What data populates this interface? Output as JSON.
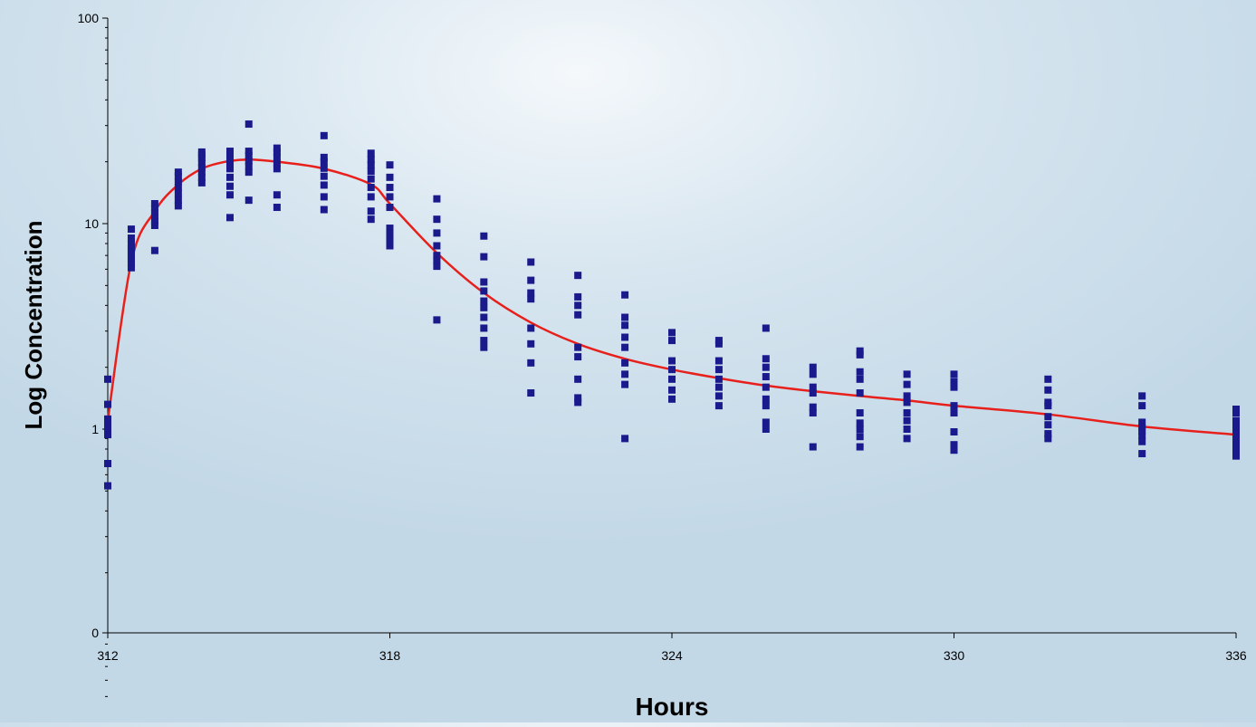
{
  "chart_data": {
    "type": "scatter",
    "xlabel": "Hours",
    "ylabel": "Log Concentration",
    "xlim": [
      312,
      336
    ],
    "ylim": [
      0.03,
      100
    ],
    "y_scale": "log",
    "x_ticks": [
      312,
      318,
      324,
      330,
      336
    ],
    "y_ticks": [
      {
        "value": 100,
        "label": "100"
      },
      {
        "value": 10,
        "label": "10"
      },
      {
        "value": 1,
        "label": "1"
      },
      {
        "value": 0.03,
        "label": "0"
      }
    ],
    "grid": false,
    "legend": "none",
    "colors": {
      "points": "#1a1a8c",
      "fit_line": "#e8201c"
    },
    "series": [
      {
        "kind": "points",
        "points": [
          [
            312,
            0.53
          ],
          [
            312,
            0.68
          ],
          [
            312,
            0.94
          ],
          [
            312,
            0.97
          ],
          [
            312,
            1.0
          ],
          [
            312,
            1.04
          ],
          [
            312,
            1.08
          ],
          [
            312,
            1.12
          ],
          [
            312,
            1.32
          ],
          [
            312,
            1.75
          ],
          [
            312.5,
            6.1
          ],
          [
            312.5,
            6.4
          ],
          [
            312.5,
            6.7
          ],
          [
            312.5,
            7.0
          ],
          [
            312.5,
            7.3
          ],
          [
            312.5,
            7.6
          ],
          [
            312.5,
            8.0
          ],
          [
            312.5,
            8.5
          ],
          [
            312.5,
            9.4
          ],
          [
            313,
            7.4
          ],
          [
            313,
            9.8
          ],
          [
            313,
            10.3
          ],
          [
            313,
            10.8
          ],
          [
            313,
            11.3
          ],
          [
            313,
            11.9
          ],
          [
            313,
            12.5
          ],
          [
            313.5,
            12.2
          ],
          [
            313.5,
            13.0
          ],
          [
            313.5,
            14.0
          ],
          [
            313.5,
            15.0
          ],
          [
            313.5,
            16.0
          ],
          [
            313.5,
            17.0
          ],
          [
            313.5,
            17.8
          ],
          [
            314,
            15.8
          ],
          [
            314,
            16.8
          ],
          [
            314,
            17.8
          ],
          [
            314,
            18.8
          ],
          [
            314,
            19.8
          ],
          [
            314,
            20.8
          ],
          [
            314,
            21.6
          ],
          [
            314,
            22.3
          ],
          [
            314.6,
            10.7
          ],
          [
            314.6,
            13.8
          ],
          [
            314.6,
            15.2
          ],
          [
            314.6,
            16.8
          ],
          [
            314.6,
            18.5
          ],
          [
            314.6,
            20.0
          ],
          [
            314.6,
            21.5
          ],
          [
            314.6,
            22.5
          ],
          [
            315,
            13.0
          ],
          [
            315,
            17.8
          ],
          [
            315,
            19.0
          ],
          [
            315,
            20.2
          ],
          [
            315,
            21.5
          ],
          [
            315,
            22.5
          ],
          [
            315,
            30.5
          ],
          [
            315.6,
            12.0
          ],
          [
            315.6,
            13.8
          ],
          [
            315.6,
            18.5
          ],
          [
            315.6,
            19.7
          ],
          [
            315.6,
            21.0
          ],
          [
            315.6,
            22.3
          ],
          [
            315.6,
            23.3
          ],
          [
            316.6,
            11.7
          ],
          [
            316.6,
            13.5
          ],
          [
            316.6,
            15.4
          ],
          [
            316.6,
            17.0
          ],
          [
            316.6,
            18.6
          ],
          [
            316.6,
            20.0
          ],
          [
            316.6,
            21.0
          ],
          [
            316.6,
            26.8
          ],
          [
            317.6,
            10.5
          ],
          [
            317.6,
            11.5
          ],
          [
            317.6,
            13.5
          ],
          [
            317.6,
            15.0
          ],
          [
            317.6,
            16.5
          ],
          [
            317.6,
            18.0
          ],
          [
            317.6,
            19.3
          ],
          [
            317.6,
            20.5
          ],
          [
            317.6,
            22.0
          ],
          [
            318,
            7.8
          ],
          [
            318,
            8.4
          ],
          [
            318,
            9.0
          ],
          [
            318,
            9.5
          ],
          [
            318,
            12.0
          ],
          [
            318,
            13.5
          ],
          [
            318,
            15.0
          ],
          [
            318,
            16.8
          ],
          [
            318,
            19.3
          ],
          [
            319,
            3.4
          ],
          [
            319,
            6.2
          ],
          [
            319,
            6.6
          ],
          [
            319,
            7.0
          ],
          [
            319,
            7.8
          ],
          [
            319,
            9.0
          ],
          [
            319,
            10.5
          ],
          [
            319,
            13.2
          ],
          [
            320,
            2.5
          ],
          [
            320,
            2.7
          ],
          [
            320,
            3.1
          ],
          [
            320,
            3.5
          ],
          [
            320,
            3.9
          ],
          [
            320,
            4.2
          ],
          [
            320,
            4.7
          ],
          [
            320,
            5.2
          ],
          [
            320,
            6.9
          ],
          [
            320,
            8.7
          ],
          [
            321,
            1.5
          ],
          [
            321,
            2.1
          ],
          [
            321,
            2.6
          ],
          [
            321,
            3.1
          ],
          [
            321,
            4.3
          ],
          [
            321,
            4.6
          ],
          [
            321,
            5.3
          ],
          [
            321,
            6.5
          ],
          [
            322,
            1.35
          ],
          [
            322,
            1.42
          ],
          [
            322,
            1.75
          ],
          [
            322,
            2.25
          ],
          [
            322,
            2.5
          ],
          [
            322,
            3.6
          ],
          [
            322,
            4.0
          ],
          [
            322,
            4.4
          ],
          [
            322,
            5.6
          ],
          [
            323,
            0.9
          ],
          [
            323,
            1.65
          ],
          [
            323,
            1.85
          ],
          [
            323,
            2.1
          ],
          [
            323,
            2.5
          ],
          [
            323,
            2.8
          ],
          [
            323,
            3.2
          ],
          [
            323,
            3.5
          ],
          [
            323,
            4.5
          ],
          [
            324,
            1.4
          ],
          [
            324,
            1.55
          ],
          [
            324,
            1.75
          ],
          [
            324,
            1.95
          ],
          [
            324,
            2.15
          ],
          [
            324,
            2.7
          ],
          [
            324,
            2.95
          ],
          [
            325,
            1.3
          ],
          [
            325,
            1.45
          ],
          [
            325,
            1.6
          ],
          [
            325,
            1.75
          ],
          [
            325,
            1.95
          ],
          [
            325,
            2.15
          ],
          [
            325,
            2.6
          ],
          [
            325,
            2.7
          ],
          [
            326,
            1.0
          ],
          [
            326,
            1.08
          ],
          [
            326,
            1.3
          ],
          [
            326,
            1.4
          ],
          [
            326,
            1.6
          ],
          [
            326,
            1.8
          ],
          [
            326,
            2.0
          ],
          [
            326,
            2.2
          ],
          [
            326,
            3.1
          ],
          [
            327,
            0.82
          ],
          [
            327,
            1.2
          ],
          [
            327,
            1.28
          ],
          [
            327,
            1.5
          ],
          [
            327,
            1.6
          ],
          [
            327,
            1.85
          ],
          [
            327,
            2.0
          ],
          [
            328,
            0.82
          ],
          [
            328,
            0.92
          ],
          [
            328,
            1.0
          ],
          [
            328,
            1.07
          ],
          [
            328,
            1.2
          ],
          [
            328,
            1.5
          ],
          [
            328,
            1.75
          ],
          [
            328,
            1.9
          ],
          [
            328,
            2.3
          ],
          [
            328,
            2.4
          ],
          [
            329,
            0.9
          ],
          [
            329,
            1.0
          ],
          [
            329,
            1.1
          ],
          [
            329,
            1.2
          ],
          [
            329,
            1.35
          ],
          [
            329,
            1.45
          ],
          [
            329,
            1.65
          ],
          [
            329,
            1.85
          ],
          [
            330,
            0.79
          ],
          [
            330,
            0.84
          ],
          [
            330,
            0.97
          ],
          [
            330,
            1.2
          ],
          [
            330,
            1.3
          ],
          [
            330,
            1.6
          ],
          [
            330,
            1.7
          ],
          [
            330,
            1.85
          ],
          [
            332,
            0.9
          ],
          [
            332,
            0.95
          ],
          [
            332,
            1.05
          ],
          [
            332,
            1.15
          ],
          [
            332,
            1.3
          ],
          [
            332,
            1.35
          ],
          [
            332,
            1.55
          ],
          [
            332,
            1.75
          ],
          [
            334,
            0.76
          ],
          [
            334,
            0.87
          ],
          [
            334,
            0.93
          ],
          [
            334,
            0.98
          ],
          [
            334,
            1.02
          ],
          [
            334,
            1.08
          ],
          [
            334,
            1.3
          ],
          [
            334,
            1.45
          ],
          [
            336,
            0.74
          ],
          [
            336,
            0.78
          ],
          [
            336,
            0.84
          ],
          [
            336,
            0.9
          ],
          [
            336,
            0.96
          ],
          [
            336,
            1.02
          ],
          [
            336,
            1.1
          ],
          [
            336,
            1.2
          ],
          [
            336,
            1.25
          ]
        ]
      },
      {
        "kind": "line",
        "x": [
          312,
          312.5,
          313,
          313.5,
          314,
          314.5,
          315,
          315.6,
          316.6,
          317.6,
          318,
          319,
          320,
          321,
          322,
          323,
          324,
          325,
          326,
          327,
          328,
          329,
          330,
          332,
          334,
          336
        ],
        "y": [
          1.1,
          6.5,
          11.5,
          15.5,
          18.5,
          20.0,
          20.5,
          20.0,
          18.5,
          15.5,
          12.5,
          7.2,
          4.6,
          3.3,
          2.6,
          2.2,
          1.95,
          1.77,
          1.63,
          1.53,
          1.45,
          1.38,
          1.3,
          1.18,
          1.03,
          0.94
        ]
      }
    ]
  }
}
